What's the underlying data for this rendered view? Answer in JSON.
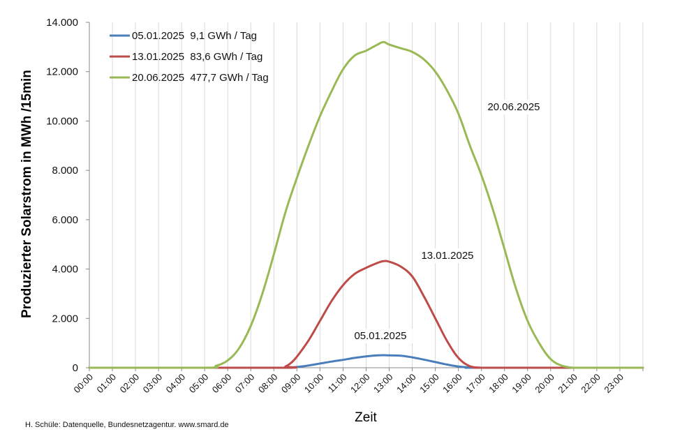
{
  "chart_data": {
    "type": "line",
    "title": "",
    "xlabel": "Zeit",
    "ylabel": "Produzierter Solarstrom in MWh /15min",
    "ylim": [
      0,
      14000
    ],
    "yticks": [
      0,
      2000,
      4000,
      6000,
      8000,
      10000,
      12000,
      14000
    ],
    "ytick_labels": [
      "0",
      "2.000",
      "4.000",
      "6.000",
      "8.000",
      "10.000",
      "12.000",
      "14.000"
    ],
    "xlim": [
      0,
      24
    ],
    "xtick_labels": [
      "00:00",
      "01:00",
      "02:00",
      "03:00",
      "04:00",
      "05:00",
      "06:00",
      "07:00",
      "08:00",
      "09:00",
      "10:00",
      "11:00",
      "12:00",
      "13:00",
      "14:00",
      "15:00",
      "16:00",
      "17:00",
      "18:00",
      "19:00",
      "20:00",
      "21:00",
      "22:00",
      "23:00"
    ],
    "x_unit": "hours",
    "grid": "vertical",
    "legend_position": "top-left",
    "series": [
      {
        "name": "05.01.2025  9,1 GWh / Tag",
        "color": "#4a7ebb",
        "annotation": "05.01.2025",
        "x": [
          0,
          8.0,
          8.5,
          9.0,
          9.5,
          10.0,
          10.5,
          11.0,
          11.5,
          12.0,
          12.5,
          12.75,
          13.0,
          13.5,
          14.0,
          14.5,
          15.0,
          15.5,
          16.0,
          16.5,
          17.0,
          24
        ],
        "y": [
          0,
          0,
          5,
          30,
          90,
          170,
          250,
          320,
          400,
          460,
          500,
          510,
          500,
          490,
          420,
          330,
          230,
          130,
          50,
          10,
          0,
          0
        ]
      },
      {
        "name": "13.01.2025  83,6 GWh / Tag",
        "color": "#be4b48",
        "annotation": "13.01.2025",
        "x": [
          0,
          8.25,
          8.5,
          8.75,
          9.0,
          9.5,
          10.0,
          10.5,
          11.0,
          11.5,
          12.0,
          12.5,
          12.75,
          13.0,
          13.5,
          14.0,
          14.5,
          15.0,
          15.5,
          16.0,
          16.5,
          17.0,
          17.25,
          24
        ],
        "y": [
          0,
          0,
          50,
          200,
          450,
          1100,
          1900,
          2700,
          3350,
          3800,
          4050,
          4250,
          4320,
          4300,
          4100,
          3700,
          2900,
          2000,
          1100,
          400,
          60,
          0,
          0,
          0
        ]
      },
      {
        "name": "20.06.2025  477,7 GWh / Tag",
        "color": "#98b954",
        "annotation": "20.06.2025",
        "x": [
          0,
          5.0,
          5.5,
          6.0,
          6.5,
          7.0,
          7.5,
          8.0,
          8.5,
          9.0,
          9.5,
          10.0,
          10.5,
          11.0,
          11.5,
          12.0,
          12.5,
          12.75,
          13.0,
          13.5,
          14.0,
          14.5,
          15.0,
          15.5,
          16.0,
          16.5,
          17.0,
          17.5,
          18.0,
          18.5,
          19.0,
          19.5,
          20.0,
          20.5,
          21.0,
          21.5,
          22.0,
          24
        ],
        "y": [
          0,
          0,
          80,
          300,
          800,
          1700,
          3000,
          4600,
          6300,
          7700,
          9000,
          10200,
          11200,
          12100,
          12650,
          12850,
          13100,
          13200,
          13100,
          12950,
          12800,
          12500,
          12000,
          11250,
          10300,
          9000,
          7800,
          6400,
          4800,
          3200,
          1900,
          1000,
          350,
          80,
          0,
          0,
          0,
          0
        ]
      }
    ]
  },
  "source_note": "H. Schüle: Datenquelle, Bundesnetzagentur. www.smard.de"
}
